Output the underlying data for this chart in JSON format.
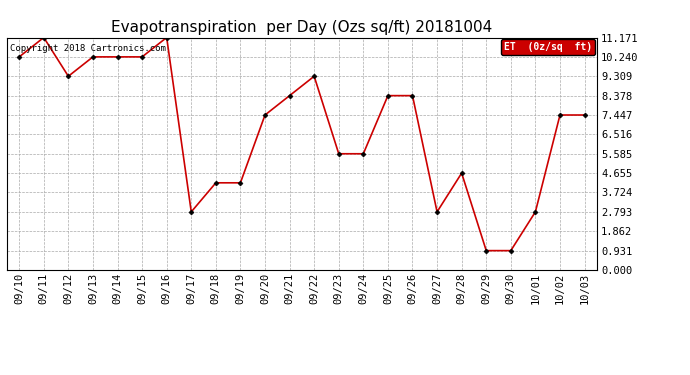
{
  "title": "Evapotranspiration  per Day (Ozs sq/ft) 20181004",
  "copyright": "Copyright 2018 Cartronics.com",
  "legend_label": "ET  (0z/sq  ft)",
  "x_labels": [
    "09/10",
    "09/11",
    "09/12",
    "09/13",
    "09/14",
    "09/15",
    "09/16",
    "09/17",
    "09/18",
    "09/19",
    "09/20",
    "09/21",
    "09/22",
    "09/23",
    "09/24",
    "09/25",
    "09/26",
    "09/27",
    "09/28",
    "09/29",
    "09/30",
    "10/01",
    "10/02",
    "10/03"
  ],
  "y_values": [
    10.24,
    11.171,
    9.309,
    10.24,
    10.24,
    10.24,
    11.171,
    2.793,
    4.189,
    4.189,
    7.447,
    8.378,
    9.309,
    5.585,
    5.585,
    8.378,
    8.378,
    2.793,
    4.655,
    0.931,
    0.931,
    2.793,
    7.447,
    7.447
  ],
  "y_ticks": [
    0.0,
    0.931,
    1.862,
    2.793,
    3.724,
    4.655,
    5.585,
    6.516,
    7.447,
    8.378,
    9.309,
    10.24,
    11.171
  ],
  "line_color": "#cc0000",
  "marker_color": "#000000",
  "legend_bg": "#cc0000",
  "legend_text_color": "#ffffff",
  "background_color": "#ffffff",
  "grid_color": "#aaaaaa",
  "title_fontsize": 11,
  "tick_fontsize": 7.5,
  "copyright_fontsize": 6.5,
  "ylim": [
    0.0,
    11.171
  ]
}
